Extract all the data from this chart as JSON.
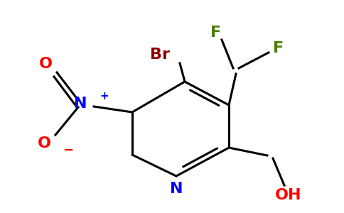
{
  "background_color": "#ffffff",
  "bond_color": "#000000",
  "atom_colors": {
    "F": "#4a7c00",
    "Br": "#8b0000",
    "N_nitro": "#0000ff",
    "O": "#ff0000",
    "N_pyridine": "#0000ff",
    "OH": "#ff0000"
  },
  "figsize": [
    4.84,
    3.0
  ],
  "dpi": 100,
  "lw": 2.2
}
